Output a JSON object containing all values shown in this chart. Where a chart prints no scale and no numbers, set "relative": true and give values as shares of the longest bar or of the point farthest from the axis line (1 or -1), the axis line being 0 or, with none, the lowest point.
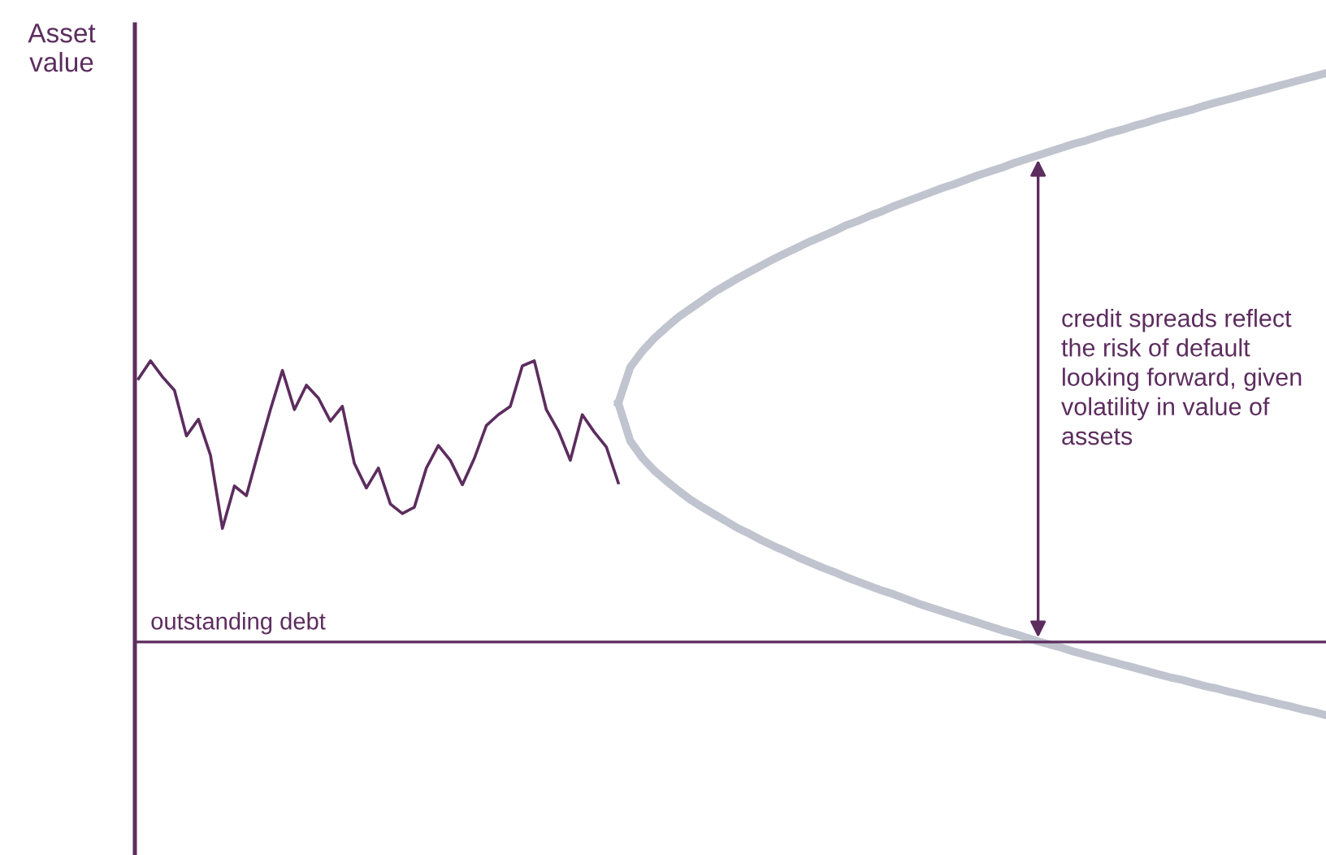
{
  "chart_data": {
    "type": "line",
    "relative": true,
    "ylabel": "Asset value",
    "grid": false,
    "legend": false,
    "marker": "none",
    "categories": [
      null,
      null,
      null,
      null,
      null,
      null,
      null,
      null,
      null,
      null,
      null,
      null,
      null,
      null,
      null,
      null,
      null,
      null,
      null,
      null,
      null,
      null,
      null,
      null,
      null,
      null,
      null,
      null,
      null,
      null,
      null,
      null,
      null,
      null,
      null,
      null,
      null,
      null,
      null,
      null,
      null,
      null,
      null,
      null,
      null,
      null,
      null,
      null,
      null,
      null,
      null,
      null,
      null,
      null,
      null,
      null,
      null,
      null,
      null,
      null,
      null,
      null,
      null,
      null,
      null,
      null,
      null,
      null,
      null,
      null,
      null,
      null,
      null,
      null,
      null,
      null,
      null,
      null,
      null,
      null,
      null,
      null,
      null,
      null,
      null,
      null,
      null,
      null,
      null,
      null,
      null,
      null,
      null,
      null,
      null,
      null,
      null,
      null,
      null,
      null
    ],
    "series": [
      {
        "color": "#5c2d5e",
        "values": [
          0.524,
          0.552,
          0.527,
          0.506,
          0.435,
          0.461,
          0.405,
          0.291,
          0.357,
          0.342,
          0.41,
          0.476,
          0.537,
          0.476,
          0.514,
          0.494,
          0.458,
          0.481,
          0.392,
          0.354,
          0.385,
          0.329,
          0.314,
          0.324,
          0.385,
          0.42,
          0.397,
          0.359,
          0.4,
          0.451,
          0.468,
          0.481,
          0.544,
          0.552,
          0.476,
          0.443,
          0.397,
          0.468,
          0.441,
          0.418,
          0.362,
          null,
          null,
          null,
          null,
          null,
          null,
          null,
          null,
          null,
          null,
          null,
          null,
          null,
          null,
          null,
          null,
          null,
          null,
          null,
          null,
          null,
          null,
          null,
          null,
          null,
          null,
          null,
          null,
          null,
          null,
          null,
          null,
          null,
          null,
          null,
          null,
          null,
          null,
          null,
          null,
          null,
          null,
          null,
          null,
          null,
          null,
          null,
          null,
          null,
          null,
          null,
          null,
          null,
          null,
          null,
          null,
          null,
          null,
          null
        ]
      },
      {
        "color": "#c0c4cf",
        "values": [
          null,
          null,
          null,
          null,
          null,
          null,
          null,
          null,
          null,
          null,
          null,
          null,
          null,
          null,
          null,
          null,
          null,
          null,
          null,
          null,
          null,
          null,
          null,
          null,
          null,
          null,
          null,
          null,
          null,
          null,
          null,
          null,
          null,
          null,
          null,
          null,
          null,
          null,
          null,
          null,
          0.486,
          0.542,
          0.567,
          0.587,
          0.604,
          0.62,
          0.633,
          0.646,
          0.659,
          0.67,
          0.681,
          0.691,
          0.701,
          0.711,
          0.72,
          0.729,
          0.738,
          0.746,
          0.754,
          0.763,
          0.77,
          0.778,
          0.785,
          0.793,
          0.8,
          0.807,
          0.814,
          0.821,
          0.827,
          0.834,
          0.841,
          0.847,
          0.853,
          0.86,
          0.866,
          0.872,
          0.878,
          0.884,
          0.89,
          0.895,
          0.901,
          0.907,
          0.912,
          0.918,
          0.923,
          0.929,
          0.934,
          0.939,
          0.944,
          0.95,
          0.955,
          0.96,
          0.965,
          0.97,
          0.975,
          0.98,
          0.985,
          0.99,
          0.995,
          1.0
        ]
      },
      {
        "color": "#c0c4cf",
        "values": [
          null,
          null,
          null,
          null,
          null,
          null,
          null,
          null,
          null,
          null,
          null,
          null,
          null,
          null,
          null,
          null,
          null,
          null,
          null,
          null,
          null,
          null,
          null,
          null,
          null,
          null,
          null,
          null,
          null,
          null,
          null,
          null,
          null,
          null,
          null,
          null,
          null,
          null,
          null,
          null,
          0.486,
          0.427,
          0.401,
          0.381,
          0.365,
          0.35,
          0.336,
          0.324,
          0.313,
          0.302,
          0.291,
          0.282,
          0.272,
          0.263,
          0.255,
          0.246,
          0.238,
          0.23,
          0.223,
          0.215,
          0.208,
          0.201,
          0.194,
          0.188,
          0.181,
          0.174,
          0.168,
          0.162,
          0.156,
          0.15,
          0.144,
          0.138,
          0.132,
          0.127,
          0.121,
          0.115,
          0.11,
          0.105,
          0.099,
          0.094,
          0.089,
          0.084,
          0.079,
          0.074,
          0.069,
          0.064,
          0.059,
          0.055,
          0.05,
          0.045,
          0.041,
          0.036,
          0.032,
          0.027,
          0.023,
          0.018,
          0.014,
          0.009,
          0.005,
          0.0
        ]
      }
    ],
    "ref_lines": [
      {
        "axis": "y",
        "value": 0.114,
        "label": "outstanding debt",
        "color": "#5c2d5e"
      }
    ],
    "annotations": [
      "credit spreads reflect the risk of default looking forward, given volatility in value of assets"
    ]
  }
}
